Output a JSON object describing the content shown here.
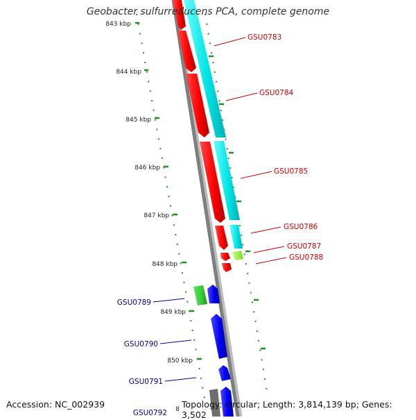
{
  "title": "Geobacter sulfurreducens PCA, complete genome",
  "footer": {
    "accession": "Accession: NC_002939",
    "stats": "Topology: circular; Length: 3,814,139 bp; Genes: 3,502"
  },
  "colors": {
    "background": "#ffffff",
    "backbone": "#808080",
    "ticks": "#1f8f1f",
    "forward_genes": "#00e5e5",
    "reverse_red_genes": "#ff0000",
    "reverse_blue_genes": "#0000ff",
    "green_gene": "#33cc33",
    "yellow_green_gene": "#99ff33",
    "red_labels": "#cc0000",
    "blue_labels": "#000099"
  },
  "scale_labels": [
    "843 kbp",
    "844 kbp",
    "845 kbp",
    "846 kbp",
    "847 kbp",
    "848 kbp",
    "849 kbp",
    "850 kbp",
    "8"
  ],
  "gene_labels_red": [
    "GSU0783",
    "GSU0784",
    "GSU0785",
    "GSU0786",
    "GSU0787",
    "GSU0788"
  ],
  "gene_labels_blue": [
    "GSU0789",
    "GSU0790",
    "GSU0791",
    "GSU0792"
  ]
}
